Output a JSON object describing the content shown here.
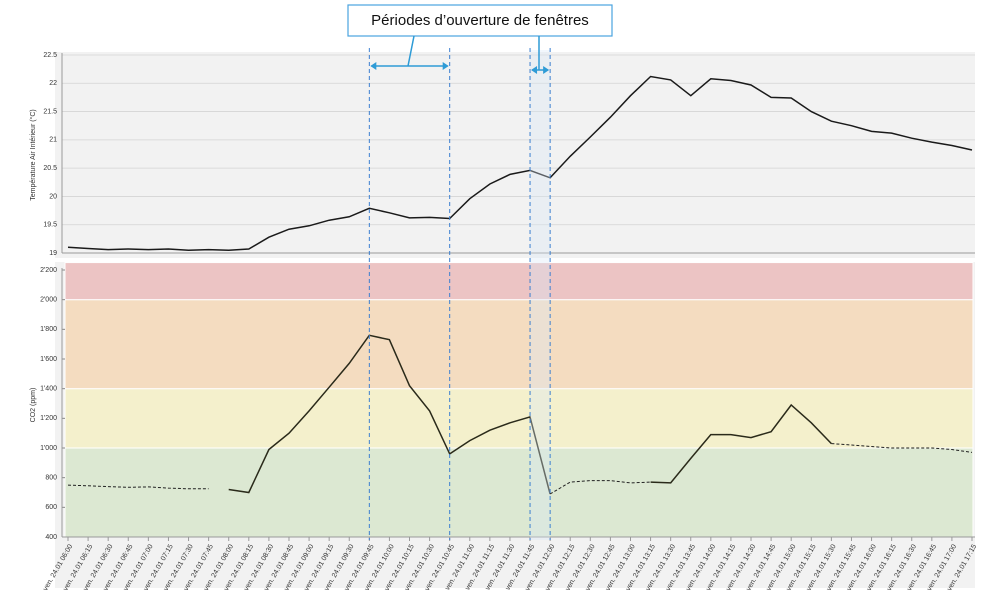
{
  "chart_data": [
    {
      "type": "line",
      "ylabel": "Température Air Intérieur (°C)",
      "annotation": "Périodes d’ouverture de fenêtres",
      "periods": [
        [
          15,
          19
        ],
        [
          23,
          24
        ]
      ],
      "ylim": [
        19,
        22.5
      ],
      "yticks": [
        19,
        19.5,
        20,
        20.5,
        21,
        21.5,
        22,
        22.5
      ],
      "grid": true,
      "series": [
        {
          "color": "#1a1a1a",
          "values": [
            19.1,
            19.08,
            19.06,
            19.07,
            19.06,
            19.07,
            19.05,
            19.06,
            19.05,
            19.07,
            19.28,
            19.42,
            19.48,
            19.58,
            19.64,
            19.79,
            19.71,
            19.62,
            19.63,
            19.61,
            19.96,
            20.22,
            20.39,
            20.46,
            20.33,
            20.71,
            21.05,
            21.4,
            21.78,
            22.12,
            22.06,
            21.78,
            22.08,
            22.05,
            21.97,
            21.75,
            21.74,
            21.5,
            21.33,
            21.25,
            21.15,
            21.12,
            21.03,
            20.96,
            20.9,
            20.82
          ]
        }
      ]
    },
    {
      "type": "line",
      "ylabel": "CO2 (ppm)",
      "categories": [
        "ven. 24.01 06:00",
        "ven. 24.01 06:15",
        "ven. 24.01 06:30",
        "ven. 24.01 06:45",
        "ven. 24.01 07:00",
        "ven. 24.01 07:15",
        "ven. 24.01 07:30",
        "ven. 24.01 07:45",
        "ven. 24.01 08:00",
        "ven. 24.01 08:15",
        "ven. 24.01 08:30",
        "ven. 24.01 08:45",
        "ven. 24.01 09:00",
        "ven. 24.01 09:15",
        "ven. 24.01 09:30",
        "ven. 24.01 09:45",
        "ven. 24.01 10:00",
        "ven. 24.01 10:15",
        "ven. 24.01 10:30",
        "ven. 24.01 10:45",
        "ven. 24.01 11:00",
        "ven. 24.01 11:15",
        "ven. 24.01 11:30",
        "ven. 24.01 11:45",
        "ven. 24.01 12:00",
        "ven. 24.01 12:15",
        "ven. 24.01 12:30",
        "ven. 24.01 12:45",
        "ven. 24.01 13:00",
        "ven. 24.01 13:15",
        "ven. 24.01 13:30",
        "ven. 24.01 13:45",
        "ven. 24.01 14:00",
        "ven. 24.01 14:15",
        "ven. 24.01 14:30",
        "ven. 24.01 14:45",
        "ven. 24.01 15:00",
        "ven. 24.01 15:15",
        "ven. 24.01 15:30",
        "ven. 24.01 15:45",
        "ven. 24.01 16:00",
        "ven. 24.01 16:15",
        "ven. 24.01 16:30",
        "ven. 24.01 16:45",
        "ven. 24.01 17:00",
        "ven. 24.01 17:15"
      ],
      "ylim": [
        400,
        2200
      ],
      "yticks": [
        400,
        600,
        800,
        {
          "value": 1000,
          "label": "1'000"
        },
        {
          "value": 1200,
          "label": "1'200"
        },
        {
          "value": 1400,
          "label": "1'400"
        },
        {
          "value": 1600,
          "label": "1'600"
        },
        {
          "value": 1800,
          "label": "1'800"
        },
        {
          "value": 2000,
          "label": "2'000"
        },
        {
          "value": 2200,
          "label": "2'200"
        }
      ],
      "bands": [
        {
          "from": 400,
          "to": 1000,
          "color": "#dce8d2"
        },
        {
          "from": 1000,
          "to": 1400,
          "color": "#f4f0cc"
        },
        {
          "from": 1400,
          "to": 2000,
          "color": "#f4dcc0"
        },
        {
          "from": 2000,
          "to": 2250,
          "color": "#ecc4c4"
        }
      ],
      "series": [
        {
          "color": "#222",
          "dashed": true,
          "values": [
            750,
            745,
            740,
            735,
            738,
            730,
            725,
            725,
            null,
            null,
            null,
            null,
            null,
            null,
            null,
            null,
            null,
            null,
            null,
            null,
            null,
            null,
            null,
            null,
            690,
            770,
            780,
            780,
            765,
            770,
            null,
            null,
            null,
            null,
            null,
            null,
            null,
            null,
            1030,
            1020,
            1010,
            1000,
            1000,
            1000,
            990,
            970
          ]
        },
        {
          "color": "#2a2a1a",
          "dashed": false,
          "values": [
            null,
            null,
            null,
            null,
            null,
            null,
            null,
            null,
            720,
            700,
            990,
            1100,
            1250,
            1410,
            1570,
            1760,
            1730,
            1420,
            1250,
            960,
            1050,
            1120,
            1170,
            1210,
            690,
            null,
            null,
            null,
            null,
            770,
            765,
            930,
            1090,
            1090,
            1070,
            1110,
            1290,
            1170,
            1030,
            null,
            null,
            null,
            null,
            null,
            null,
            null
          ]
        }
      ]
    }
  ]
}
